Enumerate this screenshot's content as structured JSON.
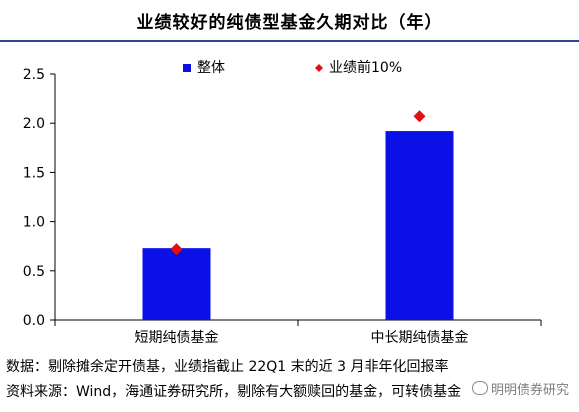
{
  "title": "业绩较好的纯债型基金久期对比（年）",
  "chart_data": {
    "type": "bar",
    "categories": [
      "短期纯债基金",
      "中长期纯债基金"
    ],
    "series": [
      {
        "name": "整体",
        "kind": "bar",
        "color": "#0a10e6",
        "values": [
          0.73,
          1.92
        ]
      },
      {
        "name": "业绩前10%",
        "kind": "marker",
        "color": "#e01010",
        "values": [
          0.72,
          2.07
        ]
      }
    ],
    "ylim": [
      0,
      2.5
    ],
    "yticks": [
      "0.0",
      "0.5",
      "1.0",
      "1.5",
      "2.0",
      "2.5"
    ],
    "grid": false,
    "legend_position": "top"
  },
  "notes": {
    "data": "数据：剔除摊余定开债基，业绩指截止 22Q1 末的近 3 月非年化回报率",
    "source": "资料来源：Wind，海通证券研究所，剔除有大额赎回的基金，可转债基金"
  },
  "watermark": "明明债券研究"
}
